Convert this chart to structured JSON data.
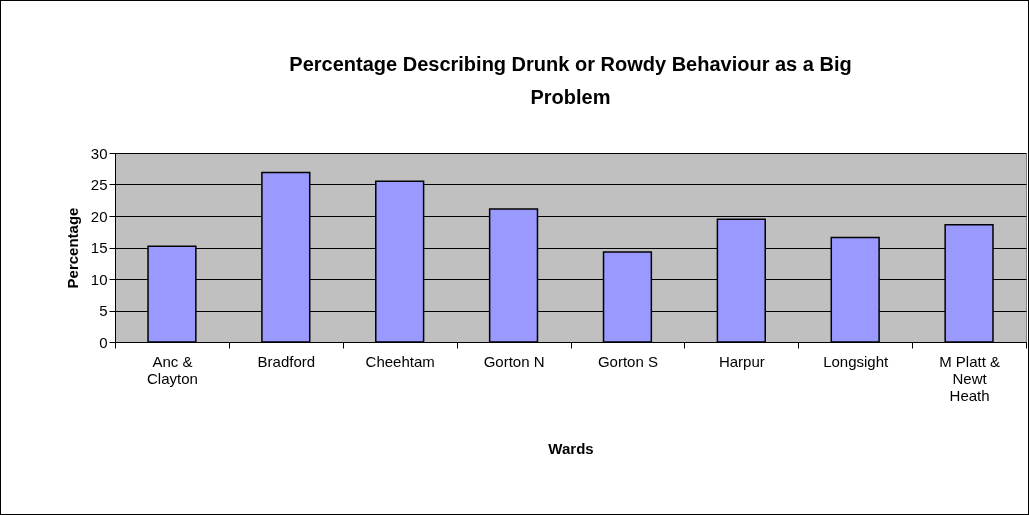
{
  "chart_data": {
    "type": "bar",
    "title": "Percentage Describing Drunk or Rowdy Behaviour as a Big Problem",
    "xlabel": "Wards",
    "ylabel": "Percentage",
    "categories": [
      "Anc & Clayton",
      "Bradford",
      "Cheehtam",
      "Gorton N",
      "Gorton S",
      "Harpur",
      "Longsight",
      "M Platt & Newt Heath"
    ],
    "values": [
      15.2,
      26.9,
      25.5,
      21.1,
      14.3,
      19.5,
      16.6,
      18.6
    ],
    "color": "#9999ff",
    "ylim": [
      0,
      30
    ],
    "yticks": [
      0,
      5,
      10,
      15,
      20,
      25,
      30
    ],
    "grid": "y"
  }
}
